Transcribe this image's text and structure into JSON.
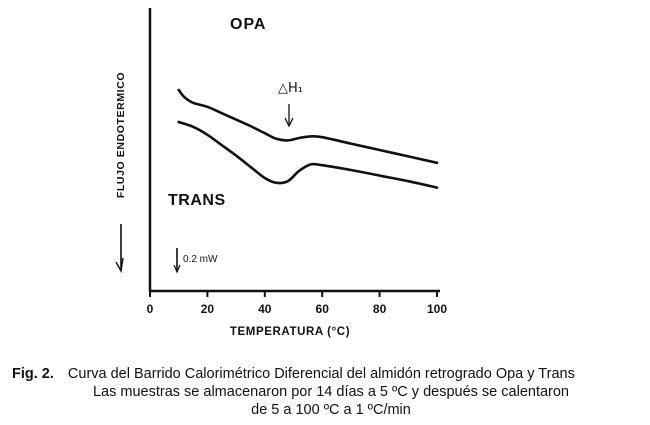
{
  "chart_data": {
    "type": "line",
    "title": "",
    "xlabel": "TEMPERATURA (°C)",
    "ylabel": "FLUJO ENDOTERMICO",
    "xlim": [
      0,
      100
    ],
    "xticks": [
      0,
      20,
      40,
      60,
      80,
      100
    ],
    "grid": false,
    "y_units": "arbitrary (curves offset vertically)",
    "series": [
      {
        "name": "OPA",
        "x": [
          10,
          12,
          15,
          20,
          25,
          30,
          35,
          40,
          44,
          48,
          52,
          56,
          60,
          70,
          80,
          90,
          100
        ],
        "y": [
          0.0,
          -0.45,
          -0.8,
          -1.05,
          -1.45,
          -1.85,
          -2.25,
          -2.7,
          -3.05,
          -3.15,
          -3.0,
          -2.9,
          -2.95,
          -3.35,
          -3.75,
          -4.15,
          -4.55
        ]
      },
      {
        "name": "TRANS",
        "x": [
          10,
          15,
          20,
          25,
          30,
          35,
          40,
          44,
          48,
          52,
          56,
          60,
          70,
          80,
          90,
          100
        ],
        "y": [
          -2.0,
          -2.3,
          -2.8,
          -3.45,
          -4.1,
          -4.8,
          -5.5,
          -5.8,
          -5.7,
          -5.05,
          -4.65,
          -4.7,
          -5.0,
          -5.35,
          -5.7,
          -6.1
        ]
      }
    ],
    "annotations": {
      "peak_label": "△H₁",
      "scale_bar_label": "0.2 mW",
      "series_labels": [
        "OPA",
        "TRANS"
      ]
    }
  },
  "caption": {
    "fig_label": "Fig. 2.",
    "line1": "Curva del Barrido Calorimétrico Diferencial del almidón retrogrado Opa y Trans",
    "line2": "Las muestras se almacenaron por 14 días a 5 ºC y después se calentaron",
    "line3": "de 5 a 100 ºC a 1 ºC/min"
  }
}
